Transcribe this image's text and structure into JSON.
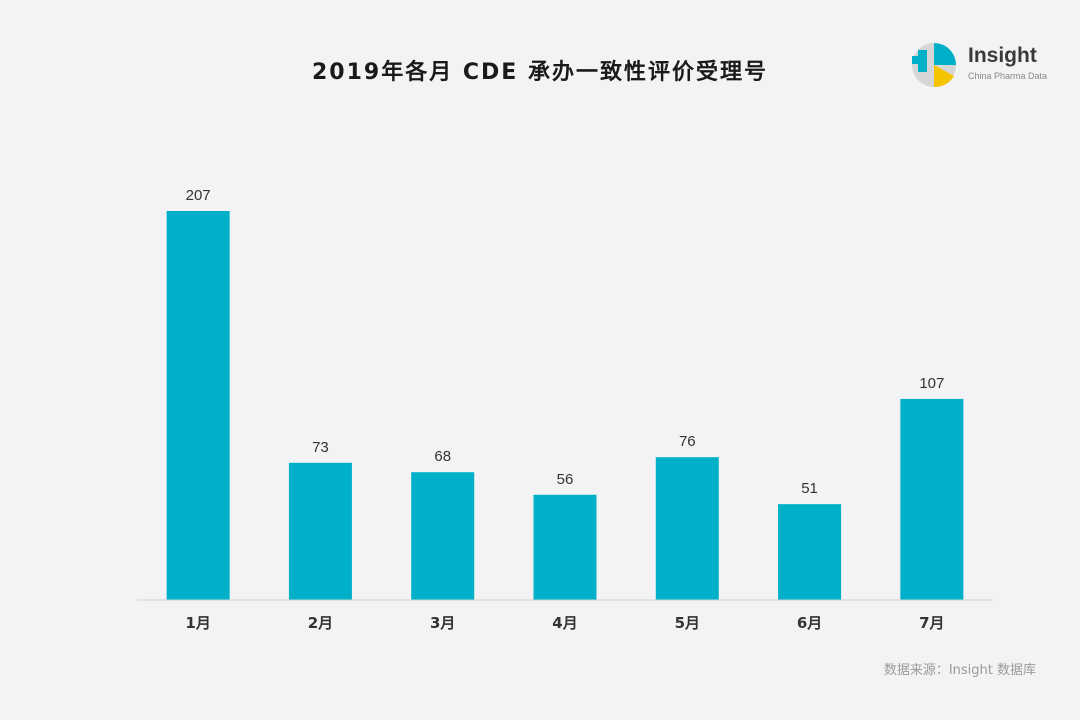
{
  "title": "2019年各月 CDE 承办一致性评价受理号",
  "logo": {
    "word": "Insight",
    "subtitle": "China Pharma Data"
  },
  "source": "数据来源：Insight 数据库",
  "colors": {
    "bar": "#00b0c8",
    "axis": "#d0d0d0",
    "background": "#f3f3f6"
  },
  "chart_data": {
    "type": "bar",
    "title": "2019年各月 CDE 承办一致性评价受理号",
    "categories": [
      "1月",
      "2月",
      "3月",
      "4月",
      "5月",
      "6月",
      "7月"
    ],
    "values": [
      207,
      73,
      68,
      56,
      76,
      51,
      107
    ],
    "xlabel": "",
    "ylabel": "",
    "ylim": [
      0,
      207
    ],
    "grid": false,
    "data_labels": true
  }
}
